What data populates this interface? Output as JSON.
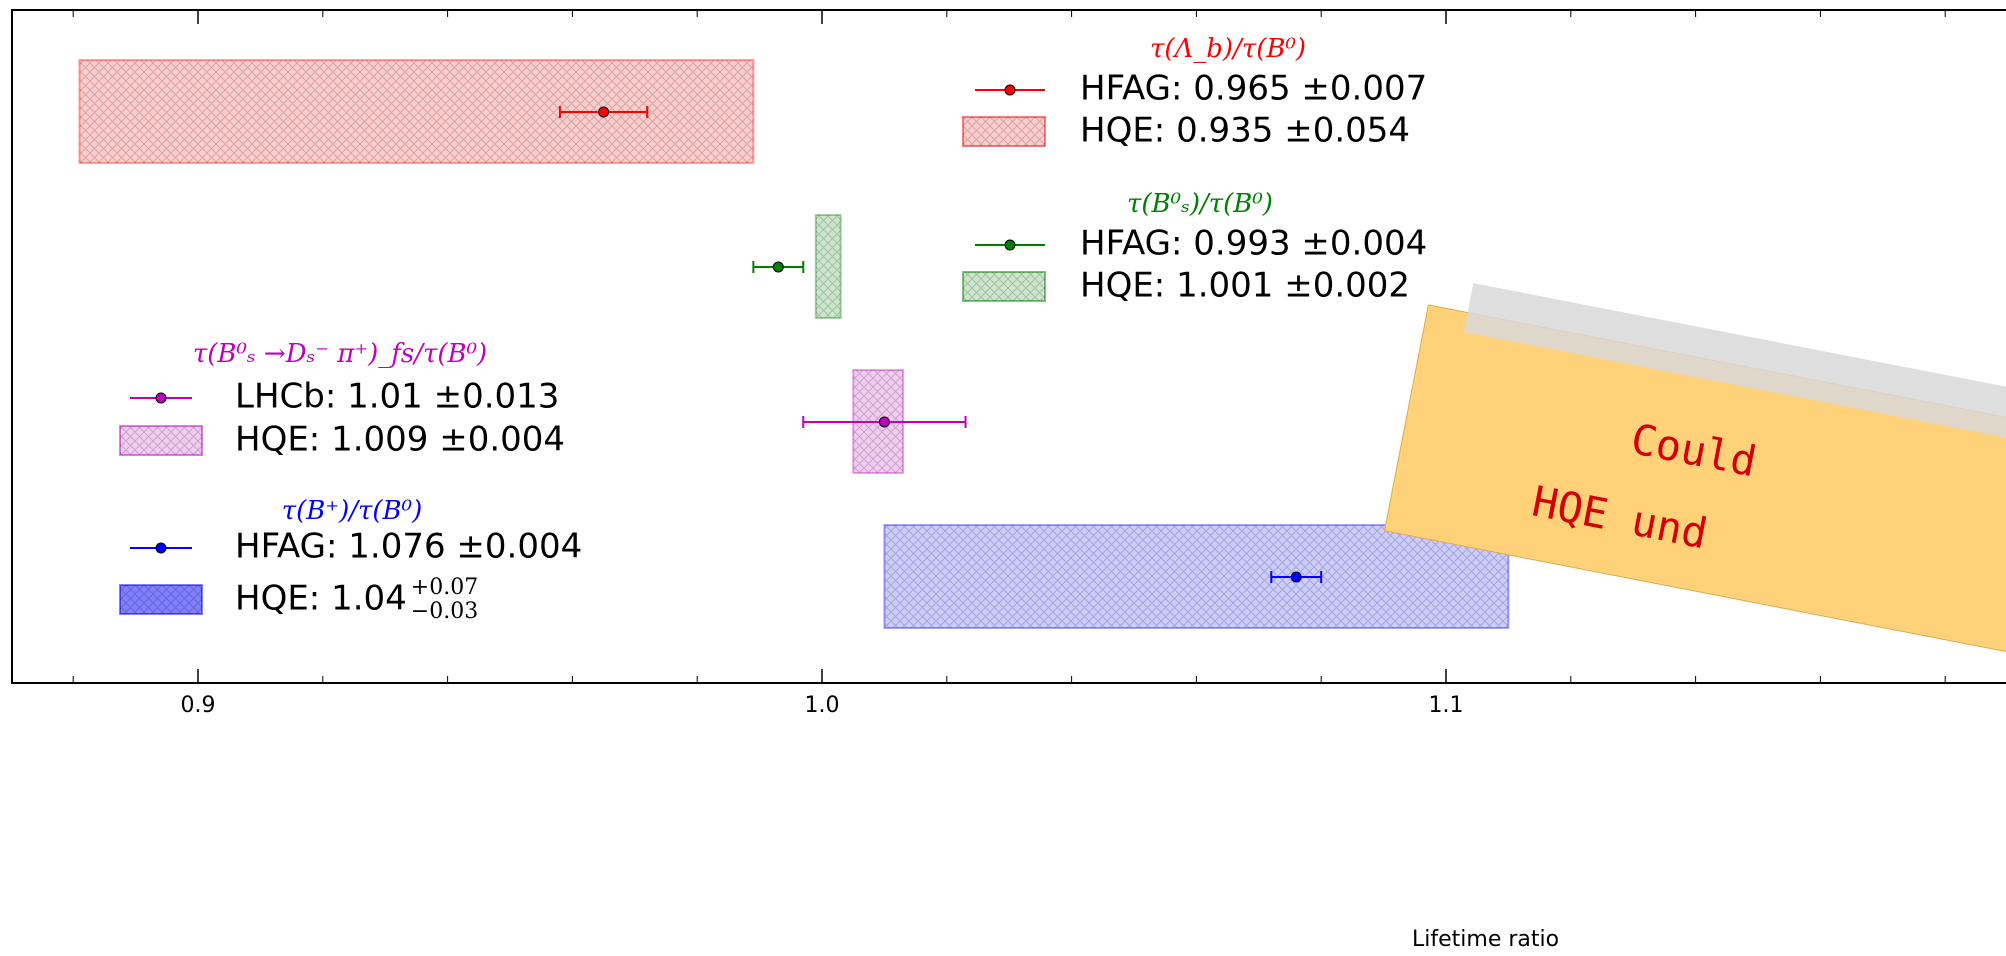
{
  "chart_data": {
    "type": "interval",
    "xlabel": "Lifetime ratio",
    "xlim": [
      0.87,
      1.19
    ],
    "xticks": [
      0.9,
      {
        "value": 1,
        "label": "1.0"
      },
      1.1
    ],
    "xminor_ticks": [
      0.88,
      0.92,
      0.94,
      0.96,
      0.98,
      1.02,
      1.04,
      1.06,
      1.08,
      1.12,
      1.14,
      1.16,
      1.18
    ],
    "groups": [
      {
        "title": "τ(Λ_b)/τ(B⁰)",
        "color": "#ff0000",
        "measurement": {
          "label": "HFAG: 0.965 ±0.007",
          "value": 0.965,
          "error": 0.007
        },
        "prediction": {
          "label": "HQE: 0.935 ±0.054",
          "value": 0.935,
          "error_minus": 0.054,
          "error_plus": 0.054
        }
      },
      {
        "title": "τ(B⁰ₛ)/τ(B⁰)",
        "color": "#008000",
        "measurement": {
          "label": "HFAG: 0.993 ±0.004",
          "value": 0.993,
          "error": 0.004
        },
        "prediction": {
          "label": "HQE: 1.001 ±0.002",
          "value": 1.001,
          "error_minus": 0.002,
          "error_plus": 0.002
        }
      },
      {
        "title": "τ(B⁰ₛ →Dₛ⁻ π⁺)_fs/τ(B⁰)",
        "color": "#bf00bf",
        "measurement": {
          "label": "LHCb: 1.01 ±0.013",
          "value": 1.01,
          "error": 0.013
        },
        "prediction": {
          "label": "HQE: 1.009 ±0.004",
          "value": 1.009,
          "error_minus": 0.004,
          "error_plus": 0.004
        }
      },
      {
        "title": "τ(B⁺)/τ(B⁰)",
        "color": "#0000ff",
        "measurement": {
          "label": "HFAG: 1.076 ±0.004",
          "value": 1.076,
          "error": 0.004
        },
        "prediction": {
          "label": "HQE: 1.04",
          "label_sup": "+0.07",
          "label_sub": "−0.03",
          "value": 1.04,
          "error_minus": 0.03,
          "error_plus": 0.07
        }
      }
    ],
    "annotations": [
      "Could",
      "HQE und"
    ]
  }
}
